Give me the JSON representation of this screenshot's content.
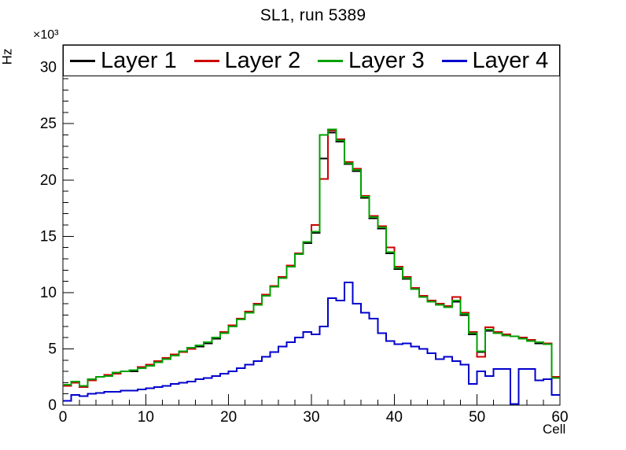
{
  "title": "SL1, run 5389",
  "axes": {
    "y_title": "Hz",
    "x_title": "Cell",
    "y_multiplier": "×10³"
  },
  "chart_data": {
    "type": "line",
    "style": "histogram-steps",
    "title": "SL1, run 5389",
    "xlabel": "Cell",
    "ylabel": "Hz",
    "y_unit_multiplier": "×10³",
    "xlim": [
      0,
      60
    ],
    "ylim": [
      0,
      32000
    ],
    "bin_width": 1,
    "grid": false,
    "legend_position": "top-inside",
    "xticks": [
      0,
      10,
      20,
      30,
      40,
      50,
      60
    ],
    "x_minor_step": 2,
    "yticks": [
      0,
      5000,
      10000,
      15000,
      20000,
      25000,
      30000
    ],
    "ytick_labels": [
      "0",
      "5",
      "10",
      "15",
      "20",
      "25",
      "30"
    ],
    "y_minor_step": 1000,
    "series": [
      {
        "name": "Layer 1",
        "color": "#000000",
        "values": [
          1800,
          2100,
          1700,
          2200,
          2500,
          2600,
          2800,
          3000,
          3000,
          3300,
          3500,
          3800,
          4100,
          4400,
          4700,
          5000,
          5200,
          5500,
          5900,
          6400,
          7000,
          7600,
          8200,
          8900,
          9700,
          10500,
          11300,
          12300,
          13400,
          14400,
          15300,
          21900,
          24200,
          23400,
          21400,
          20800,
          18400,
          16600,
          15700,
          13500,
          12100,
          11200,
          10300,
          9600,
          9200,
          8900,
          8700,
          9200,
          8000,
          6300,
          4700,
          6600,
          6400,
          6200,
          6100,
          5900,
          5700,
          5500,
          5400,
          2400
        ]
      },
      {
        "name": "Layer 2",
        "color": "#cc0000",
        "values": [
          1700,
          2000,
          1600,
          2200,
          2500,
          2700,
          2800,
          3000,
          3100,
          3400,
          3600,
          3900,
          4200,
          4500,
          4700,
          5000,
          5300,
          5600,
          6000,
          6500,
          7100,
          7700,
          8300,
          9000,
          9800,
          10600,
          11400,
          12400,
          13500,
          14500,
          16000,
          20100,
          24400,
          23600,
          21600,
          21000,
          18600,
          16800,
          15900,
          14000,
          12300,
          11400,
          10400,
          9700,
          9300,
          9000,
          8800,
          9600,
          8200,
          6500,
          4300,
          6900,
          6500,
          6300,
          6100,
          6000,
          5800,
          5600,
          5500,
          2500
        ]
      },
      {
        "name": "Layer 3",
        "color": "#00a000",
        "values": [
          1800,
          2100,
          1700,
          2300,
          2500,
          2600,
          2900,
          3000,
          3100,
          3300,
          3500,
          3800,
          4100,
          4400,
          4800,
          5100,
          5300,
          5600,
          6000,
          6400,
          7000,
          7600,
          8200,
          8900,
          9700,
          10500,
          11300,
          12300,
          13400,
          14500,
          15400,
          24000,
          24500,
          23500,
          21500,
          20900,
          18500,
          16700,
          15800,
          13600,
          12200,
          11300,
          10300,
          9600,
          9200,
          8900,
          8700,
          9300,
          8100,
          6400,
          4800,
          6700,
          6400,
          6200,
          6100,
          5900,
          5700,
          5600,
          5400,
          2400
        ]
      },
      {
        "name": "Layer 4",
        "color": "#0000cc",
        "values": [
          400,
          900,
          800,
          1000,
          1100,
          1200,
          1200,
          1300,
          1300,
          1400,
          1500,
          1600,
          1700,
          1900,
          2000,
          2100,
          2300,
          2400,
          2600,
          2800,
          3000,
          3300,
          3600,
          3900,
          4300,
          4700,
          5200,
          5600,
          6000,
          6500,
          6300,
          7000,
          9500,
          9300,
          10900,
          9000,
          8200,
          7700,
          6400,
          5700,
          5400,
          5500,
          5200,
          5000,
          4600,
          4100,
          4300,
          3900,
          3600,
          1900,
          3000,
          2600,
          3200,
          3200,
          100,
          3200,
          3200,
          2200,
          2300,
          900
        ]
      }
    ]
  }
}
